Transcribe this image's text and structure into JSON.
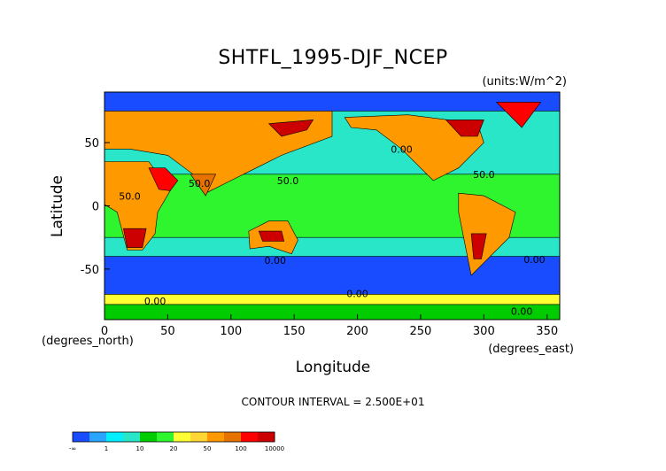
{
  "chart_data": {
    "type": "heatmap",
    "title": "SHTFL_1995-DJF_NCEP",
    "units": "(units:W/m^2)",
    "xlabel": "Longitude",
    "ylabel": "Latitude",
    "x_units": "(degrees_east)",
    "y_units": "(degrees_north)",
    "xlim": [
      0,
      360
    ],
    "ylim": [
      -90,
      90
    ],
    "x_ticks": [
      "0",
      "50",
      "100",
      "150",
      "200",
      "250",
      "300",
      "350"
    ],
    "y_ticks": [
      "50",
      "0",
      "-50"
    ],
    "contour_interval": "CONTOUR INTERVAL = 2.500E+01",
    "contour_labels": [
      {
        "text": "50.0",
        "lon": 20,
        "lat": 5
      },
      {
        "text": "50.0",
        "lon": 75,
        "lat": 15
      },
      {
        "text": "50.0",
        "lon": 145,
        "lat": 17
      },
      {
        "text": "50.0",
        "lon": 300,
        "lat": 22
      },
      {
        "text": "0.00",
        "lon": 135,
        "lat": -46
      },
      {
        "text": "0.00",
        "lon": 200,
        "lat": -72
      },
      {
        "text": "0.00",
        "lon": 40,
        "lat": -78
      },
      {
        "text": "0.00",
        "lon": 340,
        "lat": -45
      },
      {
        "text": "0.00",
        "lon": 330,
        "lat": -86
      },
      {
        "text": "0.00",
        "lon": 235,
        "lat": 42
      }
    ],
    "colorbar": {
      "labels": [
        "-∞",
        "1",
        "10",
        "20",
        "50",
        "100",
        "10000"
      ],
      "colors": [
        "#1a4cff",
        "#2aa5ff",
        "#00f0ff",
        "#29e6c8",
        "#00cc00",
        "#2ef52e",
        "#ffff33",
        "#ffd633",
        "#ff9900",
        "#e67300",
        "#ff0000",
        "#cc0000"
      ]
    },
    "regions": [
      {
        "name": "ocean-base",
        "value": 3,
        "points": [
          [
            0,
            90
          ],
          [
            360,
            90
          ],
          [
            360,
            -90
          ],
          [
            0,
            -90
          ]
        ]
      },
      {
        "name": "southern-ocean-band",
        "value": 0,
        "points": [
          [
            0,
            -40
          ],
          [
            360,
            -40
          ],
          [
            360,
            -70
          ],
          [
            0,
            -70
          ]
        ]
      },
      {
        "name": "north-atlantic-pacific-cold",
        "value": 0,
        "points": [
          [
            0,
            90
          ],
          [
            360,
            90
          ],
          [
            360,
            75
          ],
          [
            0,
            75
          ]
        ]
      },
      {
        "name": "antarctic-coast",
        "value": 6,
        "points": [
          [
            0,
            -70
          ],
          [
            360,
            -70
          ],
          [
            360,
            -78
          ],
          [
            0,
            -78
          ]
        ]
      },
      {
        "name": "antarctica",
        "value": 4,
        "points": [
          [
            0,
            -78
          ],
          [
            360,
            -78
          ],
          [
            360,
            -90
          ],
          [
            0,
            -90
          ]
        ]
      },
      {
        "name": "tropics-band",
        "value": 5,
        "points": [
          [
            0,
            25
          ],
          [
            360,
            25
          ],
          [
            360,
            -25
          ],
          [
            0,
            -25
          ]
        ]
      },
      {
        "name": "africa",
        "value": 8,
        "points": [
          [
            -15,
            35
          ],
          [
            35,
            35
          ],
          [
            52,
            12
          ],
          [
            42,
            -5
          ],
          [
            40,
            -22
          ],
          [
            30,
            -35
          ],
          [
            18,
            -35
          ],
          [
            10,
            -5
          ],
          [
            -15,
            10
          ]
        ]
      },
      {
        "name": "africa-south-hot",
        "value": 11,
        "points": [
          [
            15,
            -18
          ],
          [
            33,
            -18
          ],
          [
            30,
            -33
          ],
          [
            18,
            -33
          ]
        ]
      },
      {
        "name": "arabia",
        "value": 10,
        "points": [
          [
            35,
            30
          ],
          [
            48,
            30
          ],
          [
            58,
            20
          ],
          [
            52,
            12
          ],
          [
            43,
            13
          ]
        ]
      },
      {
        "name": "eurasia",
        "value": 8,
        "points": [
          [
            0,
            75
          ],
          [
            180,
            75
          ],
          [
            180,
            55
          ],
          [
            140,
            40
          ],
          [
            120,
            30
          ],
          [
            100,
            20
          ],
          [
            80,
            10
          ],
          [
            70,
            25
          ],
          [
            50,
            40
          ],
          [
            20,
            45
          ],
          [
            0,
            45
          ]
        ]
      },
      {
        "name": "siberia-hot",
        "value": 11,
        "points": [
          [
            130,
            65
          ],
          [
            165,
            68
          ],
          [
            160,
            60
          ],
          [
            140,
            55
          ]
        ]
      },
      {
        "name": "india",
        "value": 9,
        "points": [
          [
            68,
            25
          ],
          [
            88,
            25
          ],
          [
            80,
            8
          ]
        ]
      },
      {
        "name": "australia",
        "value": 8,
        "points": [
          [
            114,
            -20
          ],
          [
            130,
            -12
          ],
          [
            145,
            -12
          ],
          [
            153,
            -27
          ],
          [
            148,
            -38
          ],
          [
            130,
            -32
          ],
          [
            115,
            -34
          ]
        ]
      },
      {
        "name": "australia-hot",
        "value": 11,
        "points": [
          [
            122,
            -20
          ],
          [
            140,
            -20
          ],
          [
            142,
            -28
          ],
          [
            125,
            -28
          ]
        ]
      },
      {
        "name": "north-america",
        "value": 8,
        "points": [
          [
            190,
            70
          ],
          [
            240,
            72
          ],
          [
            295,
            65
          ],
          [
            300,
            50
          ],
          [
            280,
            30
          ],
          [
            260,
            20
          ],
          [
            250,
            30
          ],
          [
            235,
            45
          ],
          [
            215,
            60
          ],
          [
            195,
            62
          ]
        ]
      },
      {
        "name": "canada-hot",
        "value": 11,
        "points": [
          [
            270,
            68
          ],
          [
            300,
            68
          ],
          [
            295,
            55
          ],
          [
            282,
            55
          ]
        ]
      },
      {
        "name": "south-america",
        "value": 8,
        "points": [
          [
            280,
            10
          ],
          [
            300,
            8
          ],
          [
            325,
            -5
          ],
          [
            320,
            -25
          ],
          [
            300,
            -45
          ],
          [
            290,
            -55
          ],
          [
            285,
            -30
          ],
          [
            280,
            -5
          ]
        ]
      },
      {
        "name": "south-america-hot",
        "value": 11,
        "points": [
          [
            290,
            -22
          ],
          [
            302,
            -22
          ],
          [
            298,
            -42
          ],
          [
            292,
            -42
          ]
        ]
      },
      {
        "name": "greenland",
        "value": 10,
        "points": [
          [
            310,
            82
          ],
          [
            345,
            82
          ],
          [
            330,
            62
          ]
        ]
      }
    ]
  }
}
